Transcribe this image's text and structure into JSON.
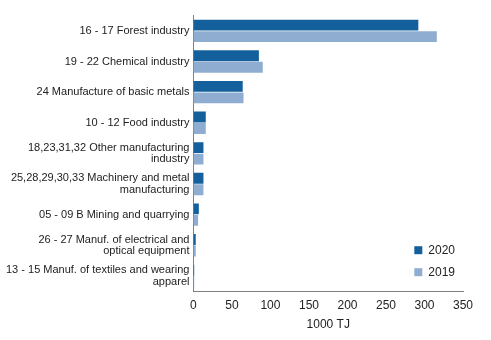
{
  "chart_data": {
    "type": "bar",
    "orientation": "horizontal",
    "categories": [
      "16 - 17 Forest industry",
      "19 - 22 Chemical industry",
      "24 Manufacture of basic metals",
      "10 - 12 Food industry",
      "18,23,31,32 Other manufacturing industry",
      "25,28,29,30,33 Machinery and metal manufacturing",
      "05 - 09 B Mining and quarrying",
      "26 - 27 Manuf. of electrical and optical equipment",
      "13 - 15 Manuf. of textiles and wearing apparel"
    ],
    "series": [
      {
        "name": "2020",
        "color": "#13609c",
        "values": [
          292,
          85,
          64,
          16,
          13,
          13,
          7,
          3,
          1
        ]
      },
      {
        "name": "2019",
        "color": "#8fadd0",
        "values": [
          316,
          90,
          65,
          16,
          13,
          13,
          6,
          3,
          1
        ]
      }
    ],
    "xlabel": "1000 TJ",
    "xlim": [
      0,
      350
    ],
    "xticks": [
      0,
      50,
      100,
      150,
      200,
      250,
      300,
      350
    ],
    "grid": false,
    "legend": "lower right"
  }
}
